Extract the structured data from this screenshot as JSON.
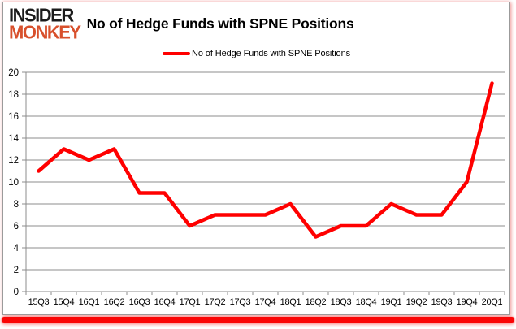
{
  "logo": {
    "line1": "INSIDER",
    "line2": "MONKEY"
  },
  "header": {
    "title": "No of Hedge Funds with SPNE Positions"
  },
  "legend": {
    "label": "No of Hedge Funds with SPNE Positions",
    "color": "#ff0000"
  },
  "chart_data": {
    "type": "line",
    "title": "No of Hedge Funds with SPNE Positions",
    "categories": [
      "15Q3",
      "15Q4",
      "16Q1",
      "16Q2",
      "16Q3",
      "16Q4",
      "17Q1",
      "17Q2",
      "17Q3",
      "17Q4",
      "18Q1",
      "18Q2",
      "18Q3",
      "18Q4",
      "19Q1",
      "19Q2",
      "19Q3",
      "19Q4",
      "20Q1"
    ],
    "series": [
      {
        "name": "No of Hedge Funds with SPNE Positions",
        "color": "#ff0000",
        "values": [
          11,
          13,
          12,
          13,
          9,
          9,
          6,
          7,
          7,
          7,
          8,
          5,
          6,
          6,
          8,
          7,
          7,
          10,
          19
        ]
      }
    ],
    "xlabel": "",
    "ylabel": "",
    "ylim": [
      0,
      20
    ],
    "yticks": [
      0,
      2,
      4,
      6,
      8,
      10,
      12,
      14,
      16,
      18,
      20
    ],
    "grid": true,
    "legend_position": "top-center"
  },
  "colors": {
    "line": "#ff0000",
    "grid": "#8c8c8c",
    "axis": "#8c8c8c",
    "tick_text": "#000000",
    "logo_top": "#1b1b1b",
    "logo_bottom": "#d8502c",
    "bottom_bar": "#fa0505",
    "frame_border": "#9b9b9b"
  }
}
